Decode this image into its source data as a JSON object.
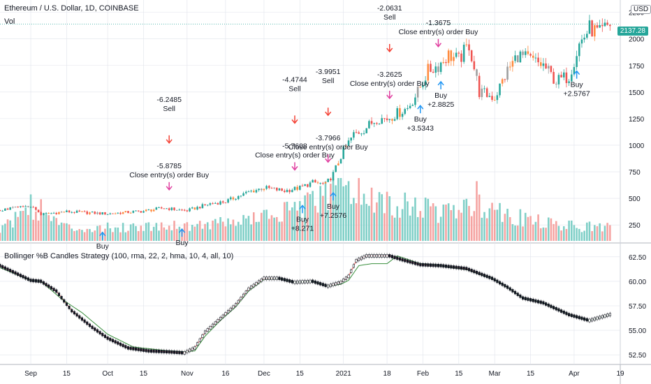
{
  "header": {
    "symbol_title": "Ethereum / U.S. Dollar, 1D, COINBASE",
    "volume_label": "Vol",
    "currency": "USD",
    "last_price": "2137.28"
  },
  "indicator": {
    "title": "Bollinger %B Candles Strategy (100, rma, 22, 2, hma, 10, 4, all, 10)"
  },
  "colors": {
    "up": "#26a69a",
    "down": "#ef5350",
    "orange": "#ff8a3d",
    "gray": "#9e9e9e",
    "buy_arrow": "#2196f3",
    "sell_arrow": "#f44336",
    "close_arrow": "#e040a0",
    "ma_line": "#ef5350",
    "ma_line_up": "#388e3c",
    "grid": "#e0e3eb"
  },
  "chart_data": [
    {
      "type": "candlestick",
      "title": "Ethereum / U.S. Dollar, 1D, COINBASE",
      "y_ticks": [
        250,
        500,
        750,
        1000,
        1250,
        1500,
        1750,
        2000,
        2250
      ],
      "ylim": [
        100,
        2300
      ],
      "x_ticks": [
        "Sep",
        "15",
        "Oct",
        "15",
        "Nov",
        "16",
        "Dec",
        "15",
        "2021",
        "18",
        "Feb",
        "15",
        "Mar",
        "15",
        "Apr",
        "19"
      ],
      "x_tick_days": [
        0,
        14,
        30,
        44,
        61,
        76,
        91,
        105,
        122,
        139,
        153,
        167,
        181,
        195,
        212,
        230
      ],
      "xlim_days": [
        -12,
        230
      ],
      "close_series_key_points": [
        {
          "day": -12,
          "close": 390
        },
        {
          "day": 0,
          "close": 430
        },
        {
          "day": 4,
          "close": 350
        },
        {
          "day": 14,
          "close": 375
        },
        {
          "day": 30,
          "close": 355
        },
        {
          "day": 44,
          "close": 380
        },
        {
          "day": 52,
          "close": 410
        },
        {
          "day": 58,
          "close": 390
        },
        {
          "day": 61,
          "close": 385
        },
        {
          "day": 70,
          "close": 450
        },
        {
          "day": 76,
          "close": 470
        },
        {
          "day": 85,
          "close": 560
        },
        {
          "day": 91,
          "close": 600
        },
        {
          "day": 99,
          "close": 570
        },
        {
          "day": 105,
          "close": 600
        },
        {
          "day": 110,
          "close": 650
        },
        {
          "day": 115,
          "close": 630
        },
        {
          "day": 118,
          "close": 730
        },
        {
          "day": 122,
          "close": 950
        },
        {
          "day": 126,
          "close": 1100
        },
        {
          "day": 130,
          "close": 1150
        },
        {
          "day": 135,
          "close": 1250
        },
        {
          "day": 139,
          "close": 1250
        },
        {
          "day": 143,
          "close": 1300
        },
        {
          "day": 147,
          "close": 1350
        },
        {
          "day": 151,
          "close": 1500
        },
        {
          "day": 155,
          "close": 1700
        },
        {
          "day": 159,
          "close": 1750
        },
        {
          "day": 163,
          "close": 1850
        },
        {
          "day": 167,
          "close": 1800
        },
        {
          "day": 171,
          "close": 1950
        },
        {
          "day": 175,
          "close": 1500
        },
        {
          "day": 181,
          "close": 1450
        },
        {
          "day": 186,
          "close": 1700
        },
        {
          "day": 190,
          "close": 1850
        },
        {
          "day": 195,
          "close": 1800
        },
        {
          "day": 200,
          "close": 1750
        },
        {
          "day": 205,
          "close": 1600
        },
        {
          "day": 210,
          "close": 1650
        },
        {
          "day": 214,
          "close": 1950
        },
        {
          "day": 218,
          "close": 2100
        },
        {
          "day": 222,
          "close": 2050
        },
        {
          "day": 226,
          "close": 2140
        }
      ],
      "volume_key_points": [
        {
          "day": -12,
          "v": 20
        },
        {
          "day": 0,
          "v": 70
        },
        {
          "day": 14,
          "v": 25
        },
        {
          "day": 30,
          "v": 25
        },
        {
          "day": 50,
          "v": 30
        },
        {
          "day": 61,
          "v": 30
        },
        {
          "day": 76,
          "v": 35
        },
        {
          "day": 91,
          "v": 45
        },
        {
          "day": 105,
          "v": 60
        },
        {
          "day": 118,
          "v": 90
        },
        {
          "day": 122,
          "v": 110
        },
        {
          "day": 130,
          "v": 80
        },
        {
          "day": 139,
          "v": 70
        },
        {
          "day": 150,
          "v": 65
        },
        {
          "day": 160,
          "v": 55
        },
        {
          "day": 171,
          "v": 60
        },
        {
          "day": 175,
          "v": 75
        },
        {
          "day": 190,
          "v": 45
        },
        {
          "day": 205,
          "v": 30
        },
        {
          "day": 226,
          "v": 25
        }
      ],
      "volume_spike_days": [
        115,
        124,
        174
      ],
      "signals": [
        {
          "day": 28,
          "kind": "buy",
          "lines": [
            "Buy"
          ],
          "partial": true
        },
        {
          "day": 54,
          "kind": "close",
          "lines": [
            "-5.8785",
            "Close entry(s) order Buy"
          ]
        },
        {
          "day": 54,
          "kind": "sell",
          "lines": [
            "-6.2485",
            "Sell"
          ]
        },
        {
          "day": 59,
          "kind": "buy",
          "lines": [
            "Buy"
          ],
          "partial": true
        },
        {
          "day": 103,
          "kind": "close",
          "lines": [
            "-5.7608",
            "Close entry(s) order Buy"
          ]
        },
        {
          "day": 103,
          "kind": "sell",
          "lines": [
            "-4.4744",
            "Sell"
          ]
        },
        {
          "day": 106,
          "kind": "buy",
          "lines": [
            "Buy",
            "+8.271"
          ]
        },
        {
          "day": 116,
          "kind": "close",
          "lines": [
            "-3.7966",
            "Close entry(s) order Buy"
          ]
        },
        {
          "day": 116,
          "kind": "sell",
          "lines": [
            "-3.9951",
            "Sell"
          ]
        },
        {
          "day": 118,
          "kind": "buy",
          "lines": [
            "Buy",
            "+7.2576"
          ]
        },
        {
          "day": 140,
          "kind": "close",
          "lines": [
            "-3.2625",
            "Close entry(s) order Buy"
          ]
        },
        {
          "day": 140,
          "kind": "sell",
          "lines": [
            "-2.0631",
            "Sell"
          ]
        },
        {
          "day": 152,
          "kind": "buy",
          "lines": [
            "Buy",
            "+3.5343"
          ]
        },
        {
          "day": 159,
          "kind": "close",
          "lines": [
            "-1.3675",
            "Close entry(s) order Buy"
          ]
        },
        {
          "day": 160,
          "kind": "sell",
          "lines": [
            "-1.3675"
          ]
        },
        {
          "day": 160,
          "kind": "buy",
          "lines": [
            "Buy",
            "+2.8825"
          ]
        },
        {
          "day": 213,
          "kind": "buy",
          "lines": [
            "Buy",
            "+2.5767"
          ]
        }
      ]
    },
    {
      "type": "line",
      "title": "Bollinger %B Candles Strategy (100, rma, 22, 2, hma, 10, 4, all, 10)",
      "y_ticks": [
        52.5,
        55.0,
        57.5,
        60.0,
        62.5
      ],
      "y_tick_labels": [
        "52.50",
        "55.00",
        "57.50",
        "60.00",
        "62.50"
      ],
      "ylim": [
        51.8,
        63.2
      ],
      "series": [
        {
          "name": "",
          "key_points": [
            {
              "day": -12,
              "v": 61.6
            },
            {
              "day": -4,
              "v": 60.6
            },
            {
              "day": 0,
              "v": 60.1
            },
            {
              "day": 4,
              "v": 60.0
            },
            {
              "day": 10,
              "v": 59.0
            },
            {
              "day": 16,
              "v": 57.0
            },
            {
              "day": 24,
              "v": 55.3
            },
            {
              "day": 30,
              "v": 54.2
            },
            {
              "day": 38,
              "v": 53.2
            },
            {
              "day": 46,
              "v": 52.9
            },
            {
              "day": 54,
              "v": 52.8
            },
            {
              "day": 60,
              "v": 52.7
            },
            {
              "day": 64,
              "v": 53.2
            },
            {
              "day": 68,
              "v": 54.8
            },
            {
              "day": 74,
              "v": 56.2
            },
            {
              "day": 80,
              "v": 57.6
            },
            {
              "day": 85,
              "v": 59.2
            },
            {
              "day": 91,
              "v": 60.3
            },
            {
              "day": 97,
              "v": 60.3
            },
            {
              "day": 103,
              "v": 59.9
            },
            {
              "day": 110,
              "v": 60.0
            },
            {
              "day": 116,
              "v": 59.5
            },
            {
              "day": 121,
              "v": 59.9
            },
            {
              "day": 124,
              "v": 60.5
            },
            {
              "day": 127,
              "v": 62.1
            },
            {
              "day": 131,
              "v": 62.6
            },
            {
              "day": 140,
              "v": 62.6
            },
            {
              "day": 145,
              "v": 62.2
            },
            {
              "day": 152,
              "v": 61.7
            },
            {
              "day": 160,
              "v": 61.6
            },
            {
              "day": 170,
              "v": 61.3
            },
            {
              "day": 180,
              "v": 60.3
            },
            {
              "day": 186,
              "v": 59.4
            },
            {
              "day": 192,
              "v": 58.3
            },
            {
              "day": 200,
              "v": 57.8
            },
            {
              "day": 210,
              "v": 56.6
            },
            {
              "day": 218,
              "v": 56.0
            },
            {
              "day": 226,
              "v": 56.6
            }
          ]
        },
        {
          "name": "",
          "key_points": [
            {
              "day": -12,
              "v": 61.4
            },
            {
              "day": 0,
              "v": 60.1
            },
            {
              "day": 4,
              "v": 60.0
            },
            {
              "day": 12,
              "v": 58.2
            },
            {
              "day": 20,
              "v": 56.8
            },
            {
              "day": 30,
              "v": 54.6
            },
            {
              "day": 40,
              "v": 53.3
            },
            {
              "day": 54,
              "v": 52.9
            },
            {
              "day": 60,
              "v": 52.8
            },
            {
              "day": 64,
              "v": 52.9
            },
            {
              "day": 68,
              "v": 54.4
            },
            {
              "day": 74,
              "v": 56.0
            },
            {
              "day": 80,
              "v": 57.4
            },
            {
              "day": 85,
              "v": 59.0
            },
            {
              "day": 91,
              "v": 60.2
            },
            {
              "day": 97,
              "v": 60.3
            },
            {
              "day": 103,
              "v": 59.9
            },
            {
              "day": 110,
              "v": 60.0
            },
            {
              "day": 116,
              "v": 59.5
            },
            {
              "day": 121,
              "v": 59.7
            },
            {
              "day": 124,
              "v": 60.1
            },
            {
              "day": 128,
              "v": 61.6
            },
            {
              "day": 133,
              "v": 61.8
            },
            {
              "day": 139,
              "v": 61.8
            },
            {
              "day": 143,
              "v": 62.6
            },
            {
              "day": 152,
              "v": 61.8
            },
            {
              "day": 160,
              "v": 61.6
            },
            {
              "day": 170,
              "v": 61.2
            },
            {
              "day": 180,
              "v": 60.3
            },
            {
              "day": 186,
              "v": 59.4
            },
            {
              "day": 192,
              "v": 58.3
            },
            {
              "day": 200,
              "v": 57.8
            },
            {
              "day": 210,
              "v": 56.6
            },
            {
              "day": 218,
              "v": 56.0
            },
            {
              "day": 226,
              "v": 56.6
            }
          ]
        }
      ]
    }
  ]
}
